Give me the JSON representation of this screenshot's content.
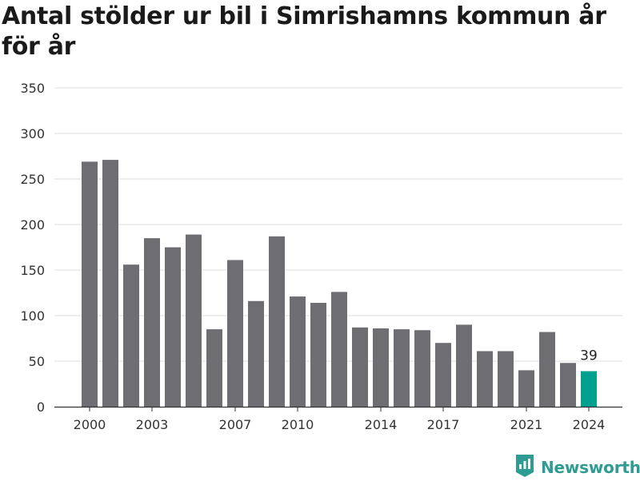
{
  "header": {
    "title": "Antal stölder ur bil i Simrishamns kommun år för år"
  },
  "brand": {
    "name": "Newsworthy",
    "color": "#2e9c93"
  },
  "colors": {
    "bar": "#6e6d72",
    "highlight": "#00a08e",
    "grid": "#dcdcdc"
  },
  "chart_data": {
    "type": "bar",
    "title": "Antal stölder ur bil i Simrishamns kommun år för år",
    "xlabel": "",
    "ylabel": "",
    "categories": [
      "2000",
      "2001",
      "2002",
      "2003",
      "2004",
      "2005",
      "2006",
      "2007",
      "2008",
      "2009",
      "2010",
      "2011",
      "2012",
      "2013",
      "2014",
      "2015",
      "2016",
      "2017",
      "2018",
      "2019",
      "2020",
      "2021",
      "2022",
      "2023",
      "2024"
    ],
    "values": [
      269,
      271,
      156,
      185,
      175,
      189,
      85,
      161,
      116,
      187,
      121,
      114,
      126,
      87,
      86,
      85,
      84,
      70,
      90,
      61,
      61,
      40,
      82,
      48,
      39
    ],
    "x_tick_labels": [
      "2000",
      "2003",
      "2007",
      "2010",
      "2014",
      "2017",
      "2021",
      "2024"
    ],
    "y_ticks": [
      0,
      50,
      100,
      150,
      200,
      250,
      300,
      350
    ],
    "ylim": [
      0,
      350
    ],
    "grid": true,
    "highlight_category": "2024",
    "data_labels": [
      {
        "category": "2024",
        "text": "39"
      }
    ]
  }
}
